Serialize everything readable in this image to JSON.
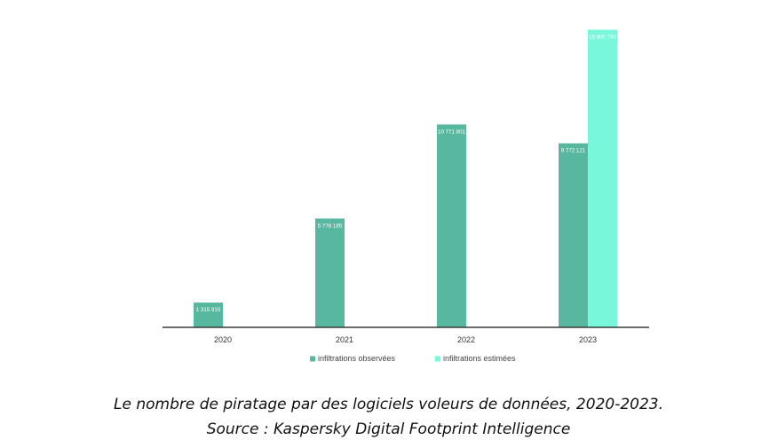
{
  "chart_data": {
    "type": "bar",
    "categories": [
      "2020",
      "2021",
      "2022",
      "2023"
    ],
    "series": [
      {
        "name": "infiltrations observées",
        "values": [
          1315915,
          5778185,
          10771801,
          9772121
        ],
        "labels": [
          "1 315 915",
          "5 778 185",
          "10 771 801",
          "9 772 121"
        ],
        "color": "#58b79f"
      },
      {
        "name": "infiltrations estimées",
        "values": [
          null,
          null,
          null,
          15800792
        ],
        "labels": [
          null,
          null,
          null,
          "15 800 792"
        ],
        "color": "#78f7db"
      }
    ],
    "ylim": [
      0,
      16300000
    ],
    "grid": false,
    "legend": "bottom",
    "axis_color": "#3a3a3a"
  },
  "caption": {
    "line1": "Le nombre de piratage par des logiciels voleurs de données, 2020-2023.",
    "line2": "Source : Kaspersky Digital Footprint Intelligence"
  }
}
